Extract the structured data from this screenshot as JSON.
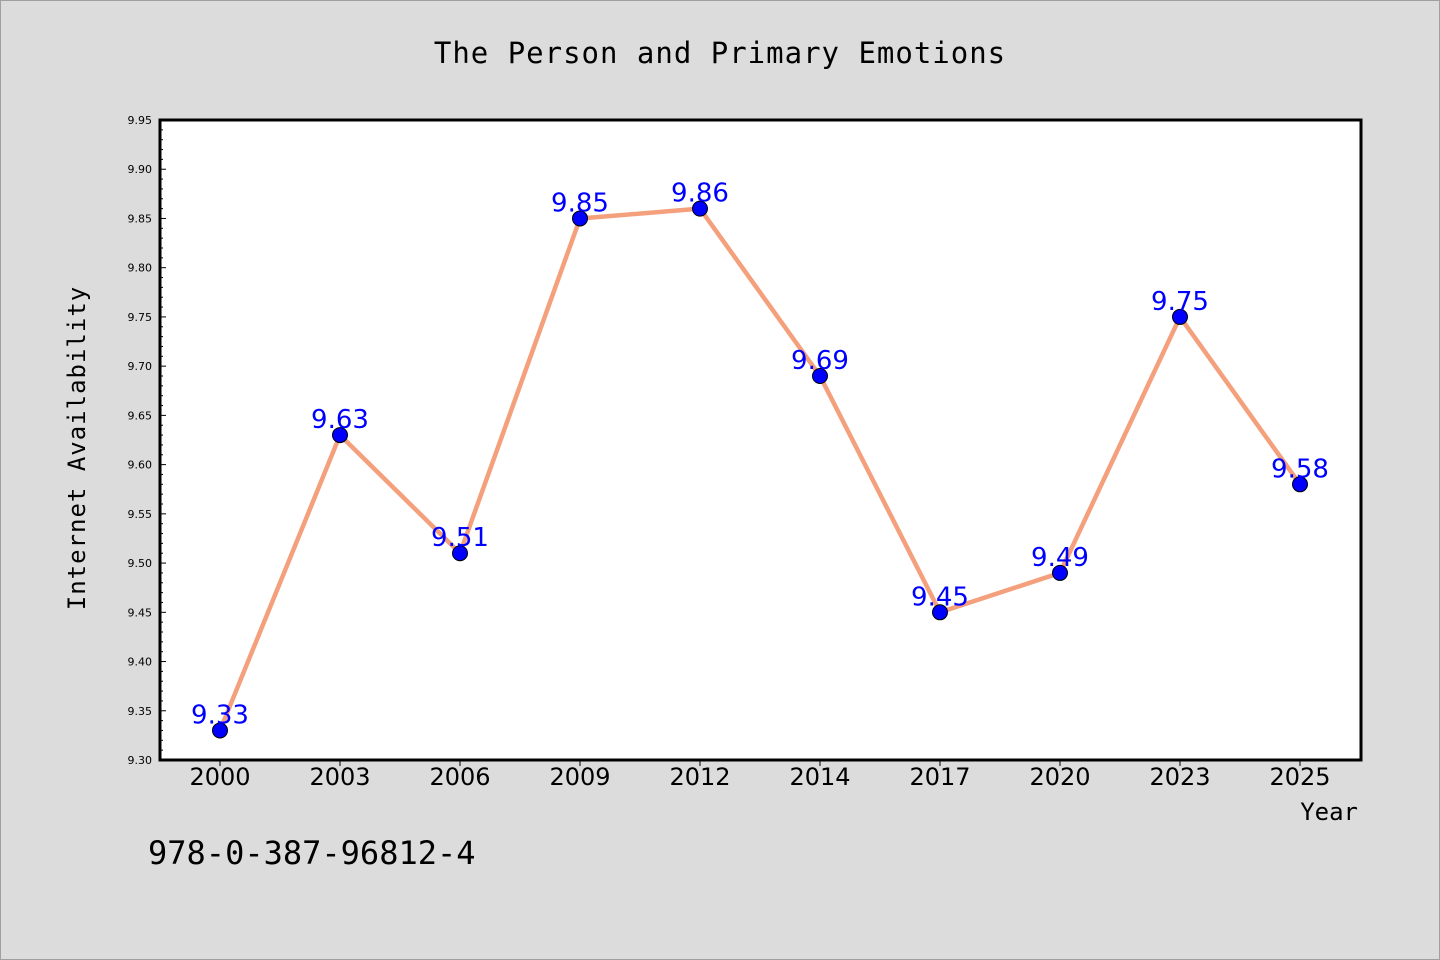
{
  "chart_data": {
    "type": "line",
    "title": "The Person and Primary Emotions",
    "xlabel": "Year",
    "ylabel": "Internet Availability",
    "categories": [
      "2000",
      "2003",
      "2006",
      "2009",
      "2012",
      "2014",
      "2017",
      "2020",
      "2023",
      "2025"
    ],
    "values": [
      9.33,
      9.63,
      9.51,
      9.85,
      9.86,
      9.69,
      9.45,
      9.49,
      9.75,
      9.58
    ],
    "data_labels": [
      "9.33",
      "9.63",
      "9.51",
      "9.85",
      "9.86",
      "9.69",
      "9.45",
      "9.49",
      "9.75",
      "9.58"
    ],
    "ylim": [
      9.3,
      9.95
    ],
    "yticks": [
      "9.30",
      "9.35",
      "9.40",
      "9.45",
      "9.50",
      "9.55",
      "9.60",
      "9.65",
      "9.70",
      "9.75",
      "9.80",
      "9.85",
      "9.90",
      "9.95"
    ],
    "grid": false,
    "colors": {
      "line": "#f4a07c",
      "marker": "#0000ff",
      "label": "#0000ff",
      "plot_background": "#ffffff",
      "figure_background": "#dcdcdc"
    }
  },
  "annotation": {
    "isbn": "978-0-387-96812-4"
  }
}
